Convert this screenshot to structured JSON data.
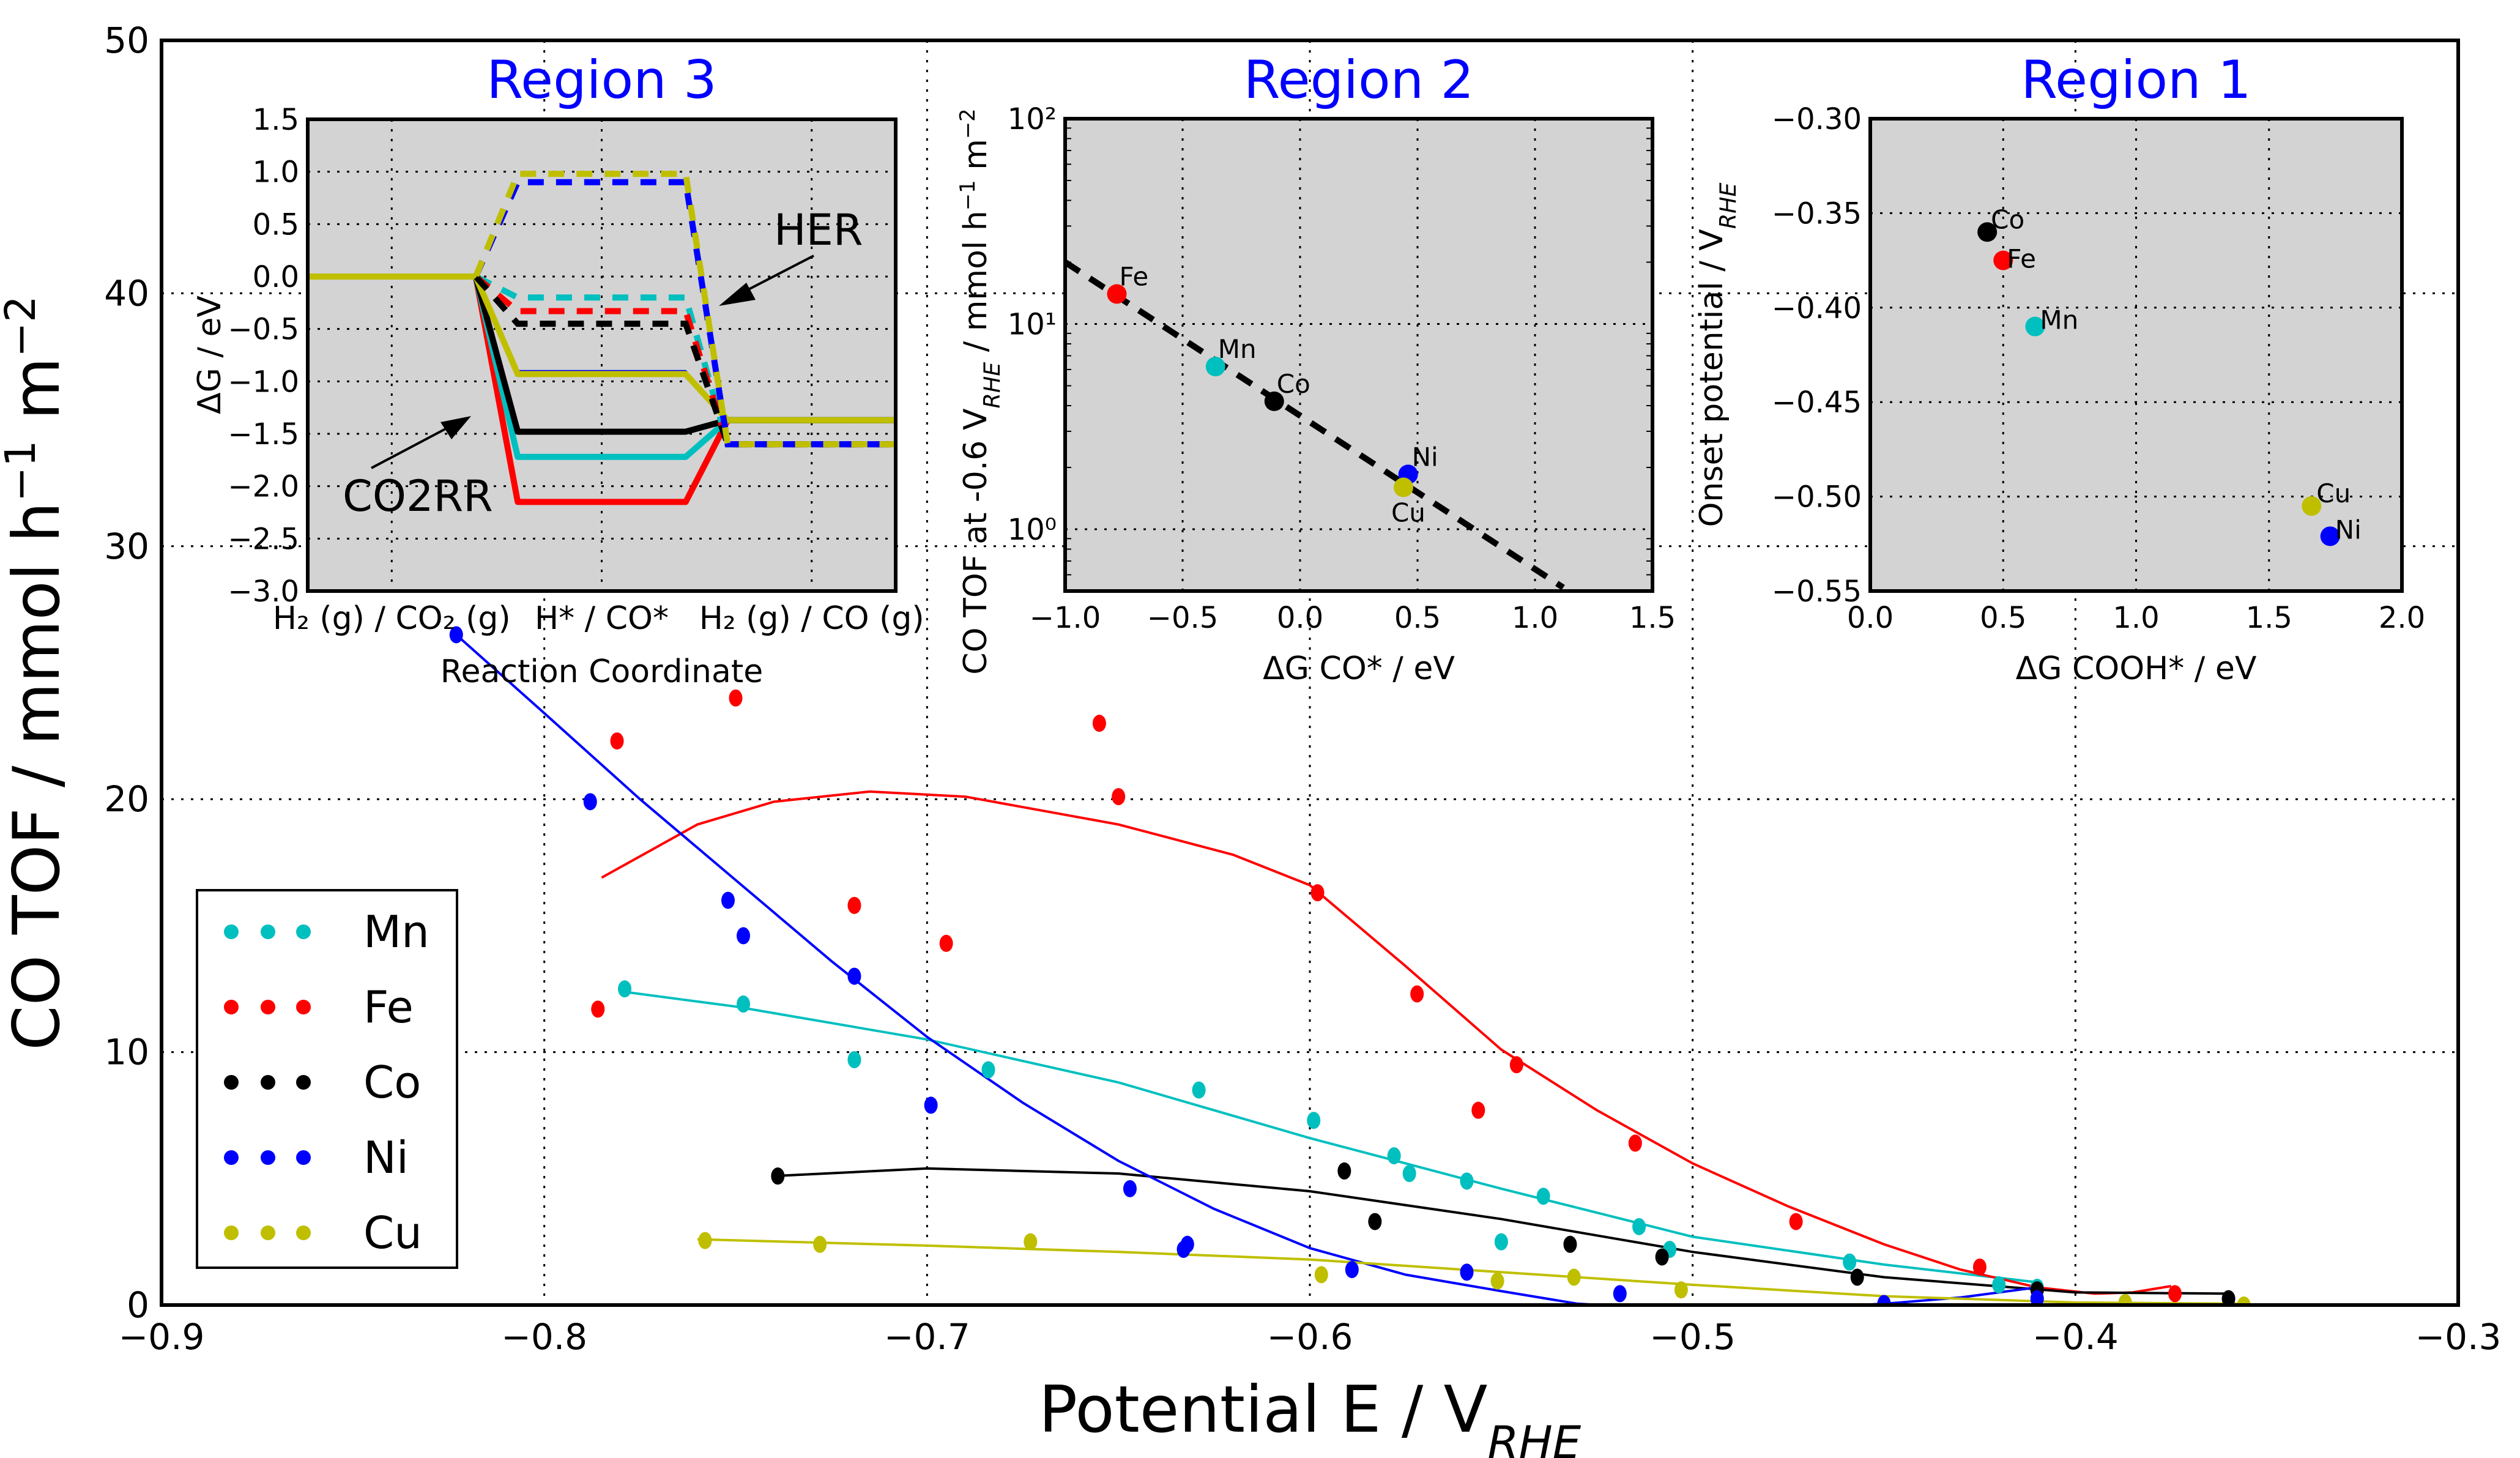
{
  "colors": {
    "Mn": "#00bfbf",
    "Fe": "#ff0000",
    "Co": "#000000",
    "Ni": "#0000ff",
    "Cu": "#bfbf00",
    "inset_bg": "#d3d3d3",
    "title": "#0000ff"
  },
  "chart_data": [
    {
      "type": "scatter",
      "xlabel": "Potential E / V",
      "xlabel_sub": "RHE",
      "ylabel": "CO TOF / mmol h",
      "ylabel_sup1": "−1",
      "ylabel_mid": " m",
      "ylabel_sup2": "−2",
      "xlim": [
        -0.9,
        -0.3
      ],
      "ylim": [
        0,
        50
      ],
      "xticks": [
        -0.9,
        -0.8,
        -0.7,
        -0.6,
        -0.5,
        -0.4,
        -0.3
      ],
      "yticks": [
        0,
        10,
        20,
        30,
        40,
        50
      ],
      "grid": true,
      "legend_placement": "lower-left",
      "series": [
        {
          "name": "Mn",
          "points": [
            [
              -0.779,
              12.5
            ],
            [
              -0.748,
              11.9
            ],
            [
              -0.719,
              9.7
            ],
            [
              -0.684,
              9.3
            ],
            [
              -0.629,
              8.5
            ],
            [
              -0.599,
              7.3
            ],
            [
              -0.578,
              5.9
            ],
            [
              -0.574,
              5.2
            ],
            [
              -0.559,
              4.9
            ],
            [
              -0.55,
              2.5
            ],
            [
              -0.539,
              4.3
            ],
            [
              -0.514,
              3.1
            ],
            [
              -0.506,
              2.2
            ],
            [
              -0.459,
              1.7
            ],
            [
              -0.42,
              0.8
            ],
            [
              -0.41,
              0.7
            ]
          ],
          "fit": [
            [
              -0.78,
              12.4
            ],
            [
              -0.75,
              11.8
            ],
            [
              -0.7,
              10.5
            ],
            [
              -0.65,
              8.8
            ],
            [
              -0.6,
              6.6
            ],
            [
              -0.55,
              4.6
            ],
            [
              -0.5,
              2.7
            ],
            [
              -0.45,
              1.6
            ],
            [
              -0.41,
              0.9
            ]
          ]
        },
        {
          "name": "Fe",
          "points": [
            [
              -0.75,
              24.0
            ],
            [
              -0.781,
              22.3
            ],
            [
              -0.786,
              11.7
            ],
            [
              -0.719,
              15.8
            ],
            [
              -0.695,
              14.3
            ],
            [
              -0.655,
              23.0
            ],
            [
              -0.65,
              20.1
            ],
            [
              -0.598,
              16.3
            ],
            [
              -0.572,
              12.3
            ],
            [
              -0.546,
              9.5
            ],
            [
              -0.556,
              7.7
            ],
            [
              -0.515,
              6.4
            ],
            [
              -0.473,
              3.3
            ],
            [
              -0.425,
              1.5
            ],
            [
              -0.374,
              0.45
            ]
          ],
          "fit": [
            [
              -0.785,
              16.9
            ],
            [
              -0.76,
              19.0
            ],
            [
              -0.74,
              19.9
            ],
            [
              -0.715,
              20.3
            ],
            [
              -0.69,
              20.1
            ],
            [
              -0.65,
              19.0
            ],
            [
              -0.62,
              17.8
            ],
            [
              -0.6,
              16.6
            ],
            [
              -0.575,
              13.4
            ],
            [
              -0.55,
              10.1
            ],
            [
              -0.525,
              7.7
            ],
            [
              -0.5,
              5.6
            ],
            [
              -0.475,
              3.9
            ],
            [
              -0.45,
              2.4
            ],
            [
              -0.43,
              1.4
            ],
            [
              -0.41,
              0.7
            ],
            [
              -0.395,
              0.45
            ],
            [
              -0.385,
              0.5
            ],
            [
              -0.375,
              0.75
            ]
          ]
        },
        {
          "name": "Co",
          "points": [
            [
              -0.739,
              5.1
            ],
            [
              -0.591,
              5.3
            ],
            [
              -0.583,
              3.3
            ],
            [
              -0.532,
              2.4
            ],
            [
              -0.508,
              1.9
            ],
            [
              -0.457,
              1.1
            ],
            [
              -0.41,
              0.6
            ],
            [
              -0.36,
              0.25
            ]
          ],
          "fit": [
            [
              -0.74,
              5.1
            ],
            [
              -0.7,
              5.4
            ],
            [
              -0.65,
              5.2
            ],
            [
              -0.6,
              4.5
            ],
            [
              -0.55,
              3.4
            ],
            [
              -0.5,
              2.1
            ],
            [
              -0.45,
              1.1
            ],
            [
              -0.4,
              0.5
            ],
            [
              -0.36,
              0.45
            ]
          ]
        },
        {
          "name": "Ni",
          "points": [
            [
              -0.823,
              26.5
            ],
            [
              -0.788,
              19.9
            ],
            [
              -0.752,
              16.0
            ],
            [
              -0.748,
              14.6
            ],
            [
              -0.719,
              13.0
            ],
            [
              -0.699,
              7.9
            ],
            [
              -0.647,
              4.6
            ],
            [
              -0.633,
              2.2
            ],
            [
              -0.632,
              2.4
            ],
            [
              -0.589,
              1.4
            ],
            [
              -0.559,
              1.3
            ],
            [
              -0.519,
              0.45
            ],
            [
              -0.45,
              0.06
            ],
            [
              -0.41,
              0.25
            ]
          ],
          "fit": [
            [
              -0.823,
              26.5
            ],
            [
              -0.8,
              23.4
            ],
            [
              -0.775,
              20.0
            ],
            [
              -0.75,
              16.8
            ],
            [
              -0.725,
              13.6
            ],
            [
              -0.7,
              10.6
            ],
            [
              -0.675,
              8.0
            ],
            [
              -0.65,
              5.7
            ],
            [
              -0.625,
              3.8
            ],
            [
              -0.6,
              2.25
            ],
            [
              -0.575,
              1.2
            ],
            [
              -0.55,
              0.55
            ],
            [
              -0.53,
              0.05
            ],
            [
              -0.5,
              -0.2
            ],
            [
              -0.47,
              -0.1
            ],
            [
              -0.45,
              0.05
            ],
            [
              -0.43,
              0.3
            ],
            [
              -0.41,
              0.7
            ]
          ]
        },
        {
          "name": "Cu",
          "points": [
            [
              -0.758,
              2.55
            ],
            [
              -0.728,
              2.4
            ],
            [
              -0.673,
              2.5
            ],
            [
              -0.597,
              1.2
            ],
            [
              -0.551,
              0.95
            ],
            [
              -0.531,
              1.1
            ],
            [
              -0.503,
              0.6
            ],
            [
              -0.387,
              0.1
            ],
            [
              -0.356,
              0.0
            ]
          ],
          "fit": [
            [
              -0.76,
              2.6
            ],
            [
              -0.7,
              2.35
            ],
            [
              -0.65,
              2.1
            ],
            [
              -0.6,
              1.8
            ],
            [
              -0.55,
              1.3
            ],
            [
              -0.5,
              0.8
            ],
            [
              -0.45,
              0.35
            ],
            [
              -0.4,
              0.1
            ],
            [
              -0.355,
              0.05
            ]
          ]
        }
      ]
    },
    {
      "type": "line",
      "title": "Region 3",
      "ylabel": "ΔG / eV",
      "xlabel": "Reaction Coordinate",
      "states": [
        "H₂ (g) / CO₂ (g)",
        "H* / CO*",
        "H₂ (g) / CO (g)"
      ],
      "ylim": [
        -3.0,
        1.5
      ],
      "yticks": [
        -3.0,
        -2.5,
        -2.0,
        -1.5,
        -1.0,
        -0.5,
        0.0,
        0.5,
        1.0,
        1.5
      ],
      "grid": true,
      "annotations": {
        "her": "HER",
        "co2rr": "CO2RR"
      },
      "co2rr_solid": [
        {
          "name": "Ni",
          "levels": [
            0,
            -0.9,
            -1.37
          ]
        },
        {
          "name": "Fe",
          "levels": [
            0,
            -2.15,
            -1.37
          ]
        },
        {
          "name": "Mn",
          "levels": [
            0,
            -1.72,
            -1.37
          ]
        },
        {
          "name": "Co",
          "levels": [
            0,
            -1.48,
            -1.37
          ]
        },
        {
          "name": "Cu",
          "levels": [
            0,
            -0.93,
            -1.37
          ]
        }
      ],
      "her_dashed": [
        {
          "name": "Mn",
          "levels": [
            0,
            -0.2,
            -1.6
          ]
        },
        {
          "name": "Fe",
          "levels": [
            0,
            -0.33,
            -1.6
          ]
        },
        {
          "name": "Co",
          "levels": [
            0,
            -0.45,
            -1.6
          ]
        },
        {
          "name": "Ni",
          "levels": [
            0,
            0.9,
            -1.6
          ]
        },
        {
          "name": "Cu",
          "levels": [
            0,
            0.98,
            -1.6
          ]
        }
      ]
    },
    {
      "type": "scatter",
      "title": "Region 2",
      "xlabel": "ΔG CO* / eV",
      "ylabel": "CO TOF at -0.6 V",
      "ylabel_sub": "RHE",
      "ylabel_mid": " / mmol h",
      "ylabel_sup1": "−1",
      "ylabel_mid2": " m",
      "ylabel_sup2": "−2",
      "xlim": [
        -1.0,
        1.5
      ],
      "ylim": [
        0.5,
        100
      ],
      "yscale": "log",
      "xticks": [
        -1.0,
        -0.5,
        0.0,
        0.5,
        1.0,
        1.5
      ],
      "yticks": [
        1,
        10,
        100
      ],
      "ytick_labels": [
        "10⁰",
        "10¹",
        "10²"
      ],
      "grid": true,
      "points": [
        {
          "name": "Fe",
          "x": -0.78,
          "y": 14
        },
        {
          "name": "Mn",
          "x": -0.36,
          "y": 6.2
        },
        {
          "name": "Co",
          "x": -0.11,
          "y": 4.2
        },
        {
          "name": "Ni",
          "x": 0.46,
          "y": 1.85
        },
        {
          "name": "Cu",
          "x": 0.44,
          "y": 1.6
        }
      ],
      "trend_line": [
        [
          -1.0,
          20
        ],
        [
          1.12,
          0.52
        ]
      ]
    },
    {
      "type": "scatter",
      "title": "Region 1",
      "xlabel": "ΔG COOH* / eV",
      "ylabel": "Onset potential / V",
      "ylabel_sub": "RHE",
      "xlim": [
        0.0,
        2.0
      ],
      "ylim": [
        -0.55,
        -0.3
      ],
      "xticks": [
        0.0,
        0.5,
        1.0,
        1.5,
        2.0
      ],
      "yticks": [
        -0.55,
        -0.5,
        -0.45,
        -0.4,
        -0.35,
        -0.3
      ],
      "grid": true,
      "points": [
        {
          "name": "Co",
          "x": 0.44,
          "y": -0.36
        },
        {
          "name": "Fe",
          "x": 0.5,
          "y": -0.375
        },
        {
          "name": "Mn",
          "x": 0.62,
          "y": -0.41
        },
        {
          "name": "Cu",
          "x": 1.66,
          "y": -0.505
        },
        {
          "name": "Ni",
          "x": 1.73,
          "y": -0.521
        }
      ]
    }
  ]
}
